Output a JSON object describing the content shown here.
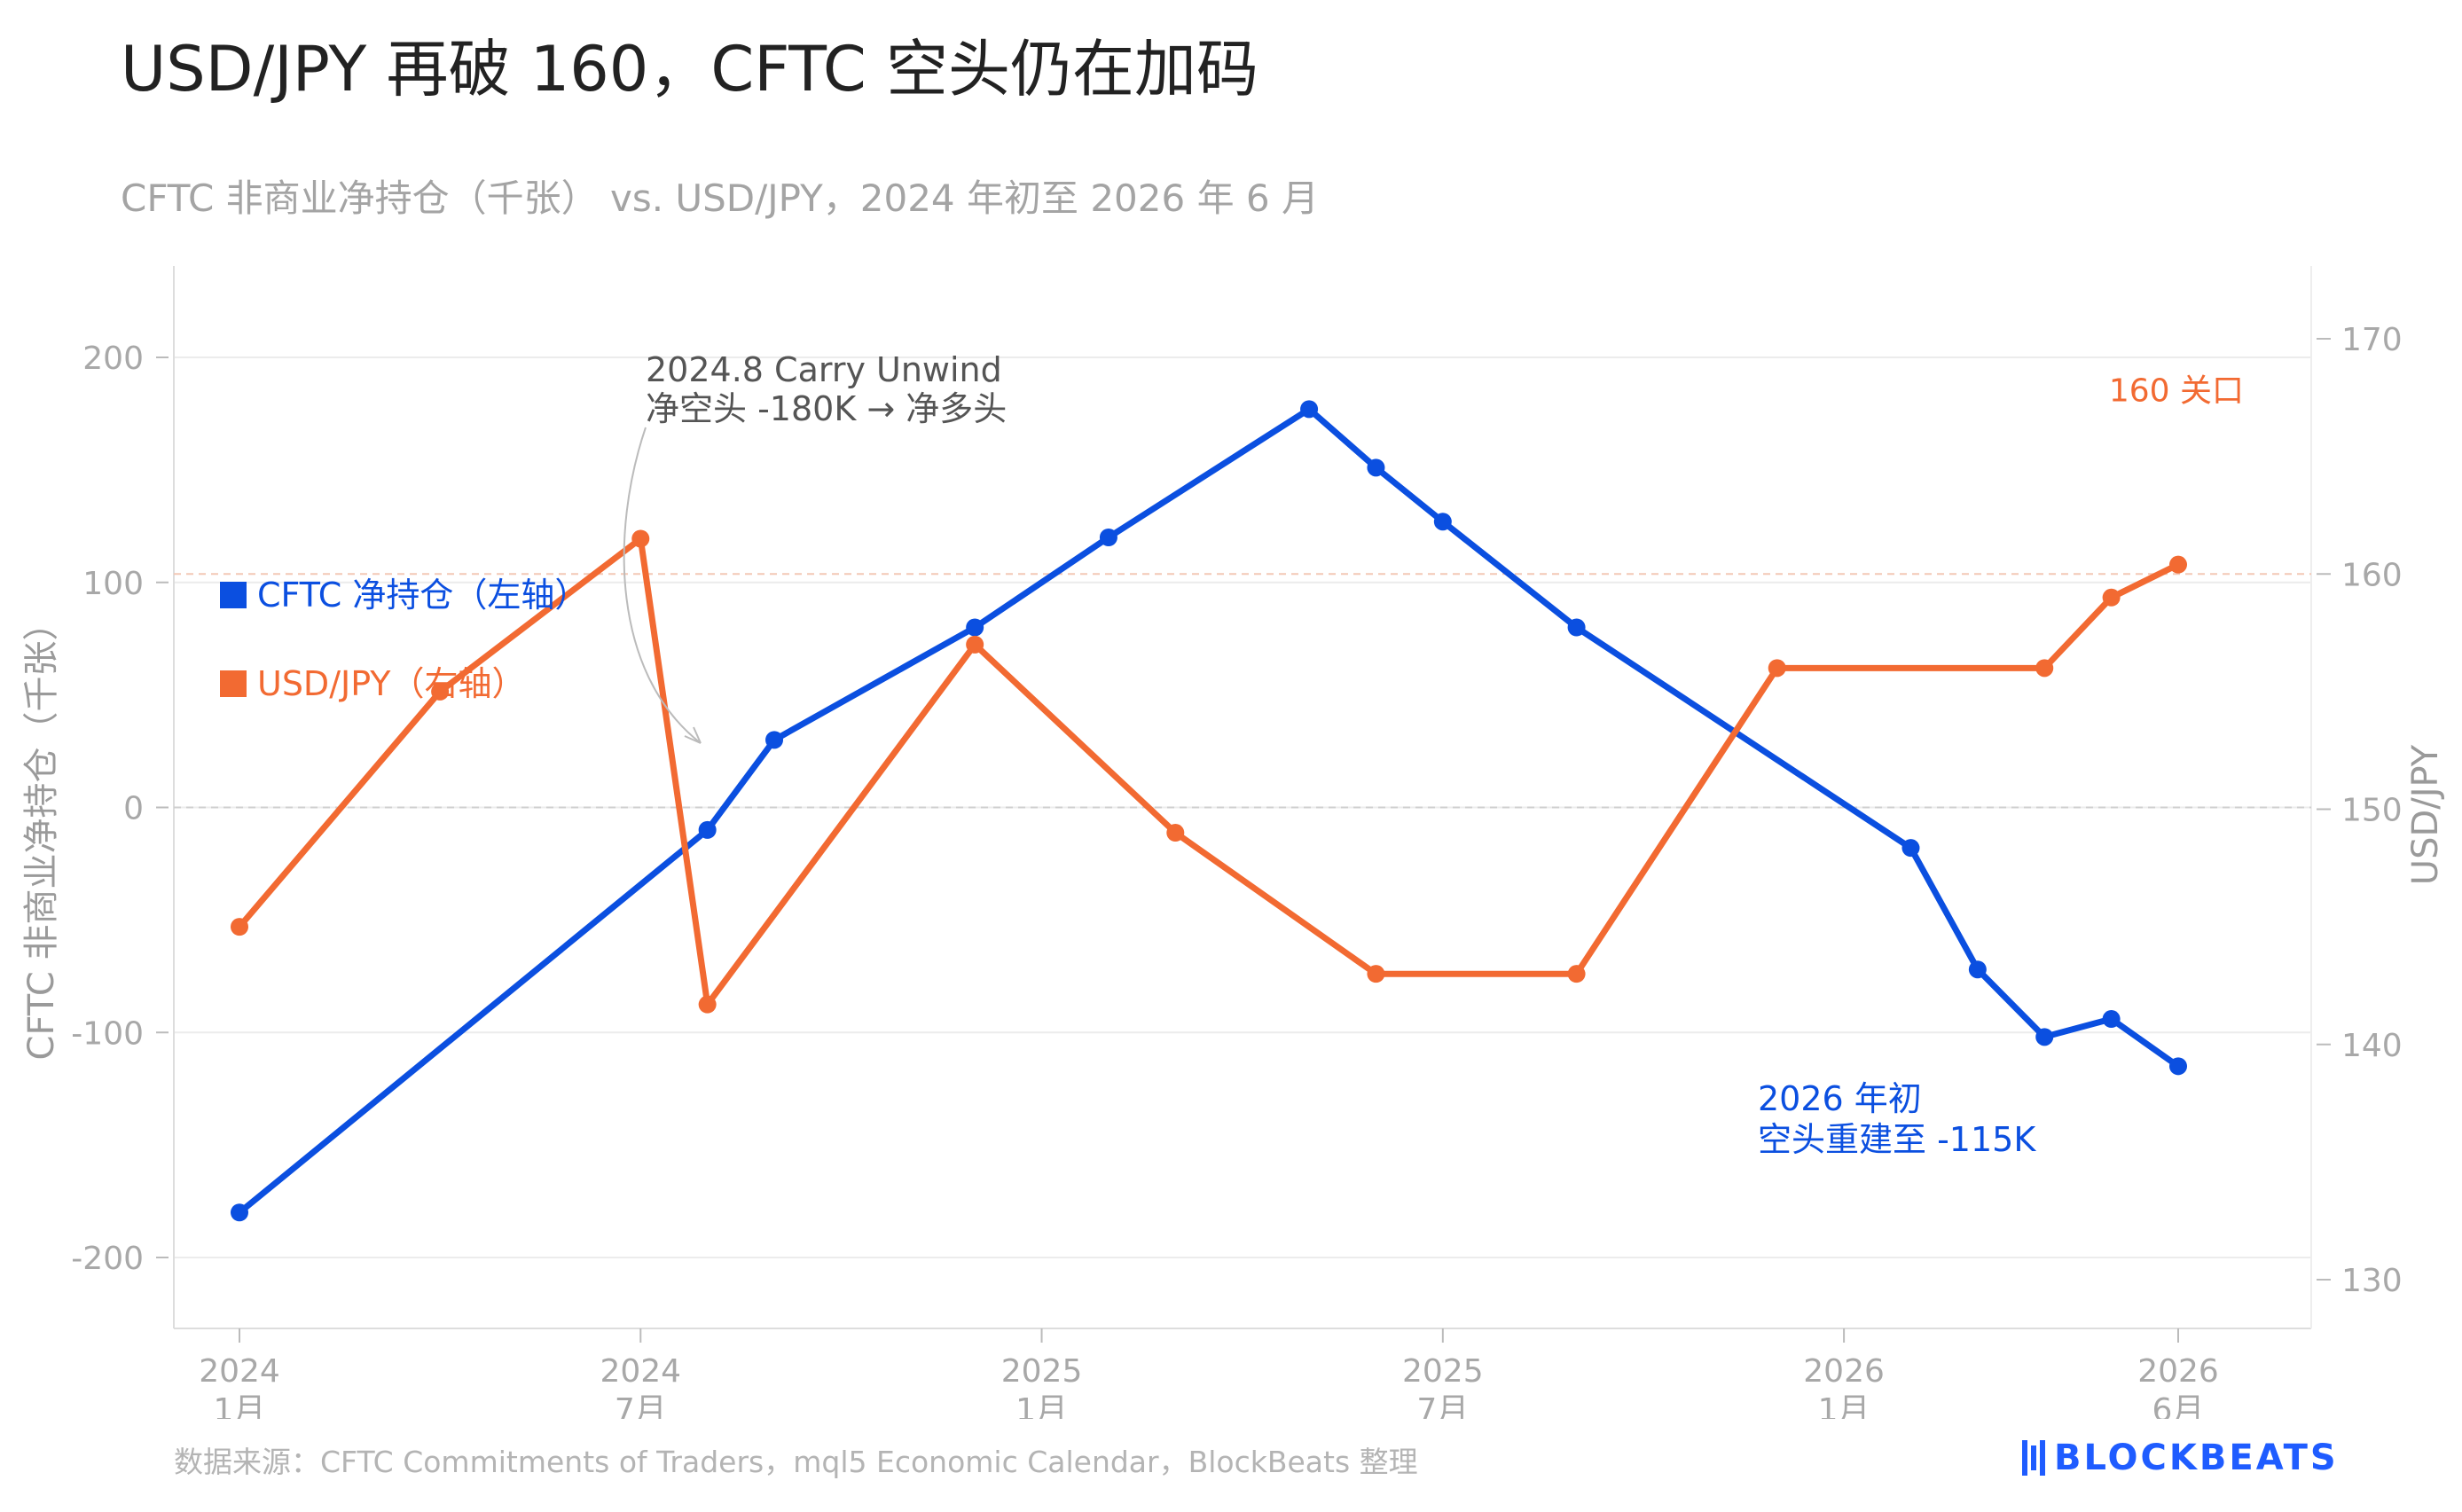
{
  "header": {
    "title": "USD/JPY 再破 160，CFTC 空头仍在加码",
    "subtitle": "CFTC 非商业净持仓（千张） vs. USD/JPY，2024 年初至 2026 年 6 月"
  },
  "footer": {
    "source": "数据来源：CFTC Commitments of Traders，mql5 Economic Calendar，BlockBeats 整理",
    "logo": "BLOCKBEATS"
  },
  "colors": {
    "cftc": "#0b4fe0",
    "usdjpy": "#f26a32",
    "axis": "#a8a8a8",
    "grid": "#ececec",
    "logo": "#1f5cff"
  },
  "chart_data": {
    "type": "line",
    "grid": true,
    "xlim": [
      "2024-01",
      "2026-08"
    ],
    "x_ticks": [
      {
        "x": "2024-01",
        "year": "2024",
        "month": "1月"
      },
      {
        "x": "2024-07",
        "year": "2024",
        "month": "7月"
      },
      {
        "x": "2025-01",
        "year": "2025",
        "month": "1月"
      },
      {
        "x": "2025-07",
        "year": "2025",
        "month": "7月"
      },
      {
        "x": "2026-01",
        "year": "2026",
        "month": "1月"
      },
      {
        "x": "2026-06",
        "year": "2026",
        "month": "6月"
      }
    ],
    "y_left": {
      "label": "CFTC 非商业净持仓（千张）",
      "ylim": [
        -230,
        260
      ],
      "ticks": [
        200,
        100,
        0,
        -100,
        -200
      ],
      "tick_labels": [
        "200",
        "100",
        "0",
        "-100",
        "-200"
      ]
    },
    "y_right": {
      "label": "USD/JPY",
      "ylim": [
        127,
        174
      ],
      "ticks": [
        170,
        160,
        150,
        140,
        130
      ],
      "tick_labels": [
        "170",
        "160",
        "150",
        "140",
        "130"
      ]
    },
    "legend_position": "left",
    "series": [
      {
        "name": "CFTC 净持仓（左轴）",
        "axis": "left",
        "points": [
          {
            "x": "2024-01",
            "y": -180
          },
          {
            "x": "2024-08",
            "y": -10
          },
          {
            "x": "2024-09",
            "y": 30
          },
          {
            "x": "2024-12",
            "y": 80
          },
          {
            "x": "2025-02",
            "y": 120
          },
          {
            "x": "2025-05",
            "y": 177
          },
          {
            "x": "2025-06",
            "y": 151
          },
          {
            "x": "2025-07",
            "y": 127
          },
          {
            "x": "2025-09",
            "y": 80
          },
          {
            "x": "2026-02",
            "y": -18
          },
          {
            "x": "2026-03",
            "y": -72
          },
          {
            "x": "2026-04",
            "y": -102
          },
          {
            "x": "2026-05",
            "y": -94
          },
          {
            "x": "2026-06",
            "y": -115
          }
        ]
      },
      {
        "name": "USD/JPY（右轴）",
        "axis": "right",
        "points": [
          {
            "x": "2024-01",
            "y": 145
          },
          {
            "x": "2024-04",
            "y": 155
          },
          {
            "x": "2024-07",
            "y": 161.5
          },
          {
            "x": "2024-08",
            "y": 141.7
          },
          {
            "x": "2024-12",
            "y": 157
          },
          {
            "x": "2025-03",
            "y": 149
          },
          {
            "x": "2025-06",
            "y": 143
          },
          {
            "x": "2025-09",
            "y": 143
          },
          {
            "x": "2025-12",
            "y": 156
          },
          {
            "x": "2026-04",
            "y": 156
          },
          {
            "x": "2026-05",
            "y": 159
          },
          {
            "x": "2026-06",
            "y": 160.4
          }
        ]
      }
    ],
    "reference_lines": [
      {
        "axis": "right",
        "y": 160,
        "label": "160 关口"
      },
      {
        "axis": "left",
        "y": 0,
        "label": ""
      }
    ],
    "annotations": [
      {
        "lines": [
          "2024.8 Carry Unwind",
          "净空头 -180K → 净多头"
        ]
      },
      {
        "lines": [
          "2026 年初",
          "空头重建至 -115K"
        ]
      }
    ]
  }
}
